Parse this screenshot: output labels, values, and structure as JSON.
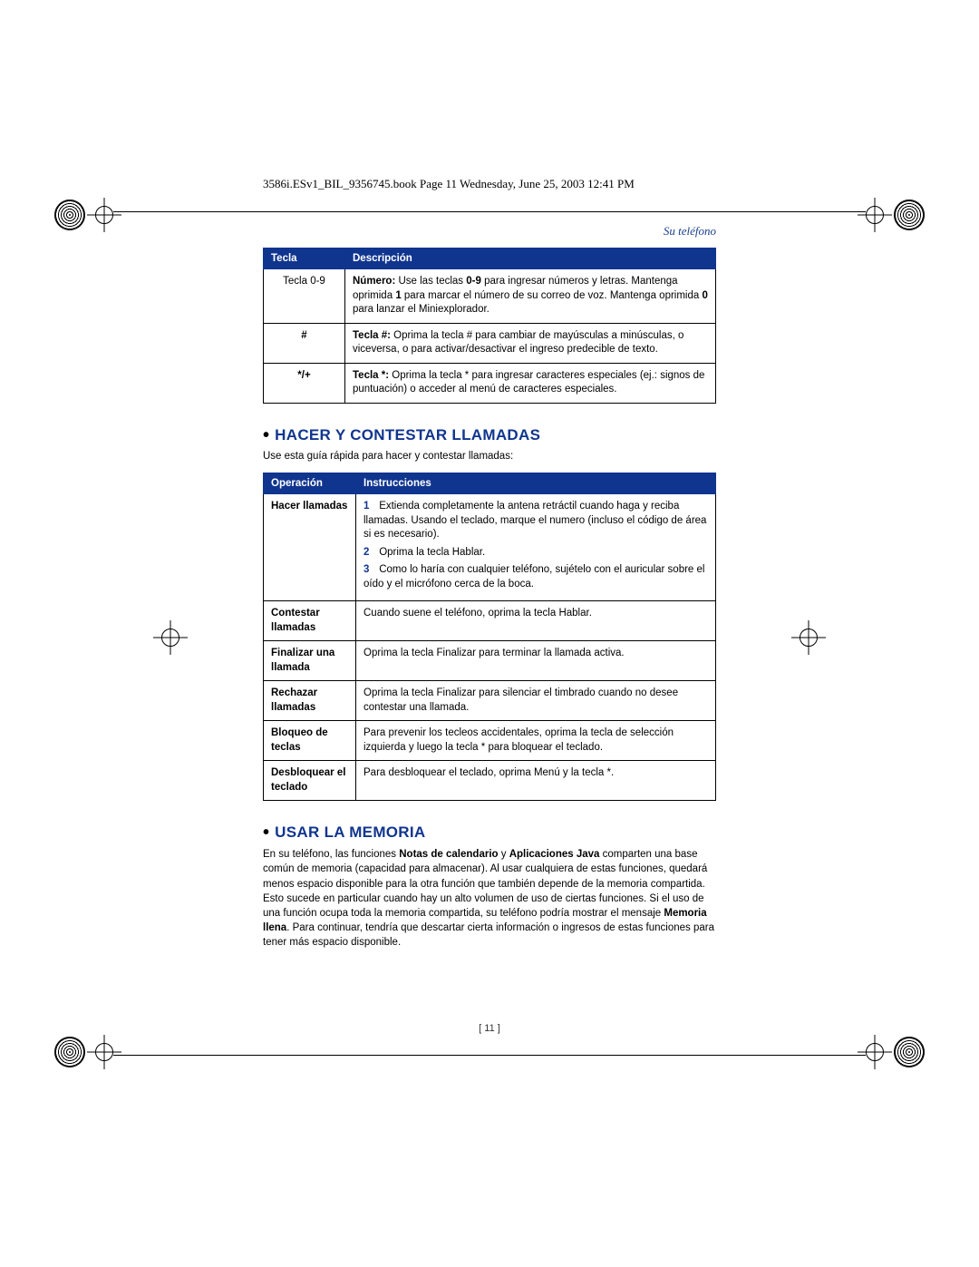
{
  "book_header": "3586i.ESv1_BIL_9356745.book  Page 11  Wednesday, June 25, 2003  12:41 PM",
  "section_label": "Su teléfono",
  "page_number": "11",
  "colors": {
    "heading_blue": "#10358f",
    "table_header_bg": "#10358f",
    "section_label": "#1a3e8c"
  },
  "tecla_table": {
    "headers": [
      "Tecla",
      "Descripción"
    ],
    "rows": [
      {
        "key": "Tecla 0-9",
        "desc_html": "<b>Número:</b> Use las teclas <b>0-9</b> para ingresar números y letras. Mantenga oprimida <b>1</b> para marcar el número de su correo de voz. Mantenga oprimida <b>0</b> para lanzar el Miniexplorador."
      },
      {
        "key": "#",
        "desc_html": "<b>Tecla #:</b> Oprima la tecla # para cambiar de mayúsculas a minúsculas, o viceversa, o para activar/desactivar el ingreso predecible de texto."
      },
      {
        "key": "*/+",
        "desc_html": "<b>Tecla *:</b> Oprima la tecla * para ingresar caracteres especiales (ej.: signos de puntuación) o acceder al menú de caracteres especiales."
      }
    ]
  },
  "heading_calls": "HACER Y CONTESTAR LLAMADAS",
  "calls_intro": "Use esta guía rápida para hacer y contestar llamadas:",
  "ops_table": {
    "headers": [
      "Operación",
      "Instrucciones"
    ],
    "rows": [
      {
        "op": "Hacer llamadas",
        "steps": [
          "Extienda completamente la antena retráctil cuando haga y reciba llamadas. Usando el teclado, marque el numero (incluso el código de área si es necesario).",
          "Oprima la tecla Hablar.",
          "Como lo haría con cualquier teléfono, sujételo con el auricular sobre el oído y el micrófono cerca de la boca."
        ]
      },
      {
        "op": "Contestar llamadas",
        "text": "Cuando suene el teléfono, oprima la tecla Hablar."
      },
      {
        "op": "Finalizar una llamada",
        "text": "Oprima la tecla Finalizar para terminar la llamada activa."
      },
      {
        "op": "Rechazar llamadas",
        "text": "Oprima la tecla Finalizar para silenciar el timbrado cuando no desee contestar una llamada."
      },
      {
        "op": "Bloqueo de teclas",
        "text": "Para prevenir los tecleos accidentales, oprima la tecla de selección izquierda y luego la tecla * para bloquear el teclado."
      },
      {
        "op": "Desbloquear el teclado",
        "text": "Para desbloquear el teclado, oprima Menú y la tecla *."
      }
    ]
  },
  "heading_memory": "USAR LA MEMORIA",
  "memory_para_html": "En su teléfono, las funciones <b>Notas de calendario</b> y <b>Aplicaciones Java</b> comparten una base común de memoria (capacidad para almacenar). Al usar cualquiera de estas funciones, quedará menos espacio disponible para la otra función que también depende de la memoria compartida. Esto sucede en particular cuando hay un alto volumen de uso de ciertas funciones. Si el uso de una función ocupa toda la memoria compartida, su teléfono podría mostrar el mensaje <b>Memoria llena</b>. Para continuar, tendría que descartar cierta información o ingresos de estas funciones para tener más espacio disponible."
}
